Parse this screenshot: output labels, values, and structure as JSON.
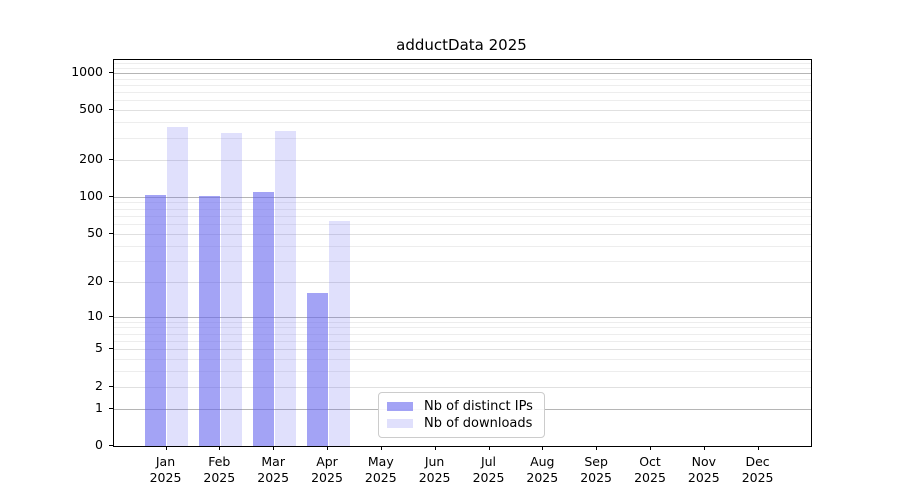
{
  "chart_data": {
    "type": "bar",
    "title": "adductData 2025",
    "categories": [
      "Jan",
      "Feb",
      "Mar",
      "Apr",
      "May",
      "Jun",
      "Jul",
      "Aug",
      "Sep",
      "Oct",
      "Nov",
      "Dec"
    ],
    "category_year": "2025",
    "series": [
      {
        "name": "Nb of distinct IPs",
        "color": "#6666ee",
        "alpha": 0.6,
        "values": [
          104,
          102,
          110,
          16,
          null,
          null,
          null,
          null,
          null,
          null,
          null,
          null
        ]
      },
      {
        "name": "Nb of downloads",
        "color": "#6666ee",
        "alpha": 0.2,
        "values": [
          370,
          330,
          342,
          64,
          null,
          null,
          null,
          null,
          null,
          null,
          null,
          null
        ]
      }
    ],
    "yscale": "log1p",
    "yticks": [
      0,
      1,
      2,
      5,
      10,
      20,
      50,
      100,
      200,
      500,
      1000
    ],
    "ylim": [
      0,
      1270
    ],
    "grid": true,
    "legend_position": "bottom-center",
    "xlabel": "",
    "ylabel": ""
  },
  "colors": {
    "bar_base": "102,102,238",
    "grid_major": "#b5b5b5",
    "grid_mid": "#e0e0e0",
    "grid_minor": "#ededed",
    "axis": "#000000",
    "background": "#ffffff"
  }
}
